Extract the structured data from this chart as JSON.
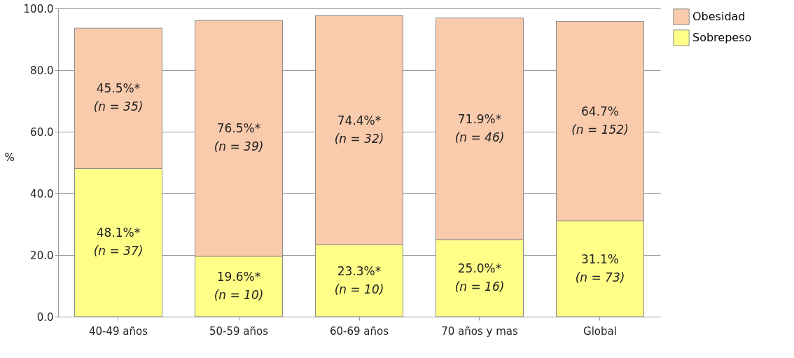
{
  "chart_data": {
    "type": "bar",
    "stacked": true,
    "ylabel": "%",
    "categories": [
      "40-49 años",
      "50-59 años",
      "60-69 años",
      "70 años y mas",
      "Global"
    ],
    "series": [
      {
        "name": "Sobrepeso",
        "color": "#ffff88",
        "values": [
          48.1,
          19.6,
          23.3,
          25.0,
          31.1
        ],
        "value_labels": [
          "48.1%*\n(n = 37)",
          "19.6%*\n(n = 10)",
          "23.3%*\n(n = 10)",
          "25.0%*\n(n = 16)",
          "31.1%\n(n = 73)"
        ]
      },
      {
        "name": "Obesidad",
        "color": "#f9cbac",
        "values": [
          45.5,
          76.5,
          74.4,
          71.9,
          64.7
        ],
        "value_labels": [
          "45.5%*\n(n = 35)",
          "76.5%*\n(n = 39)",
          "74.4%*\n(n = 32)",
          "71.9%*\n(n = 46)",
          "64.7%\n(n = 152)"
        ]
      }
    ],
    "ylim": [
      0,
      100
    ],
    "yticks": [
      {
        "value": 0,
        "label": "0.0"
      },
      {
        "value": 20,
        "label": "20.0"
      },
      {
        "value": 40,
        "label": "40.0"
      },
      {
        "value": 60,
        "label": "60.0"
      },
      {
        "value": 80,
        "label": "80.0"
      },
      {
        "value": 100,
        "label": "100.0"
      }
    ],
    "grid": "y",
    "legend": "right"
  }
}
